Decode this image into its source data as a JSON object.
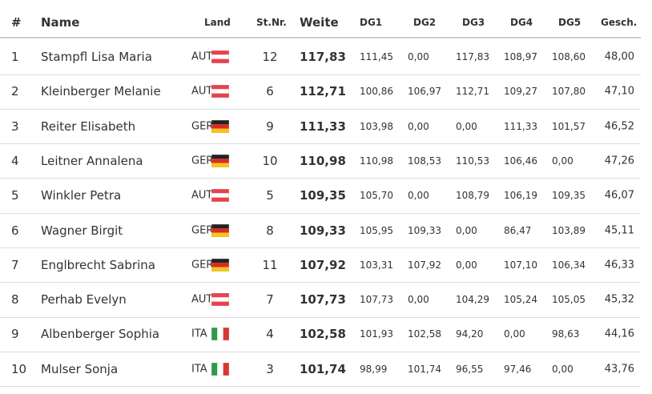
{
  "table": {
    "columns": [
      "#",
      "Name",
      "Land",
      "St.Nr.",
      "Weite",
      "DG1",
      "DG2",
      "DG3",
      "DG4",
      "DG5",
      "Gesch."
    ],
    "rows": [
      [
        "1",
        "Stampfl Lisa Maria",
        "AUT",
        "12",
        "117,83",
        "111,45",
        "0,00",
        "117,83",
        "108,97",
        "108,60",
        "48,00"
      ],
      [
        "2",
        "Kleinberger Melanie",
        "AUT",
        "6",
        "112,71",
        "100,86",
        "106,97",
        "112,71",
        "109,27",
        "107,80",
        "47,10"
      ],
      [
        "3",
        "Reiter Elisabeth",
        "GER",
        "9",
        "111,33",
        "103,98",
        "0,00",
        "0,00",
        "111,33",
        "101,57",
        "46,52"
      ],
      [
        "4",
        "Leitner Annalena",
        "GER",
        "10",
        "110,98",
        "110,98",
        "108,53",
        "110,53",
        "106,46",
        "0,00",
        "47,26"
      ],
      [
        "5",
        "Winkler Petra",
        "AUT",
        "5",
        "109,35",
        "105,70",
        "0,00",
        "108,79",
        "106,19",
        "109,35",
        "46,07"
      ],
      [
        "6",
        "Wagner Birgit",
        "GER",
        "8",
        "109,33",
        "105,95",
        "109,33",
        "0,00",
        "86,47",
        "103,89",
        "45,11"
      ],
      [
        "7",
        "Englbrecht Sabrina",
        "GER",
        "11",
        "107,92",
        "103,31",
        "107,92",
        "0,00",
        "107,10",
        "106,34",
        "46,33"
      ],
      [
        "8",
        "Perhab Evelyn",
        "AUT",
        "7",
        "107,73",
        "107,73",
        "0,00",
        "104,29",
        "105,24",
        "105,05",
        "45,32"
      ],
      [
        "9",
        "Albenberger Sophia",
        "ITA",
        "4",
        "102,58",
        "101,93",
        "102,58",
        "94,20",
        "0,00",
        "98,63",
        "44,16"
      ],
      [
        "10",
        "Mulser Sonja",
        "ITA",
        "3",
        "101,74",
        "98,99",
        "101,74",
        "96,55",
        "97,46",
        "0,00",
        "43,76"
      ]
    ]
  }
}
